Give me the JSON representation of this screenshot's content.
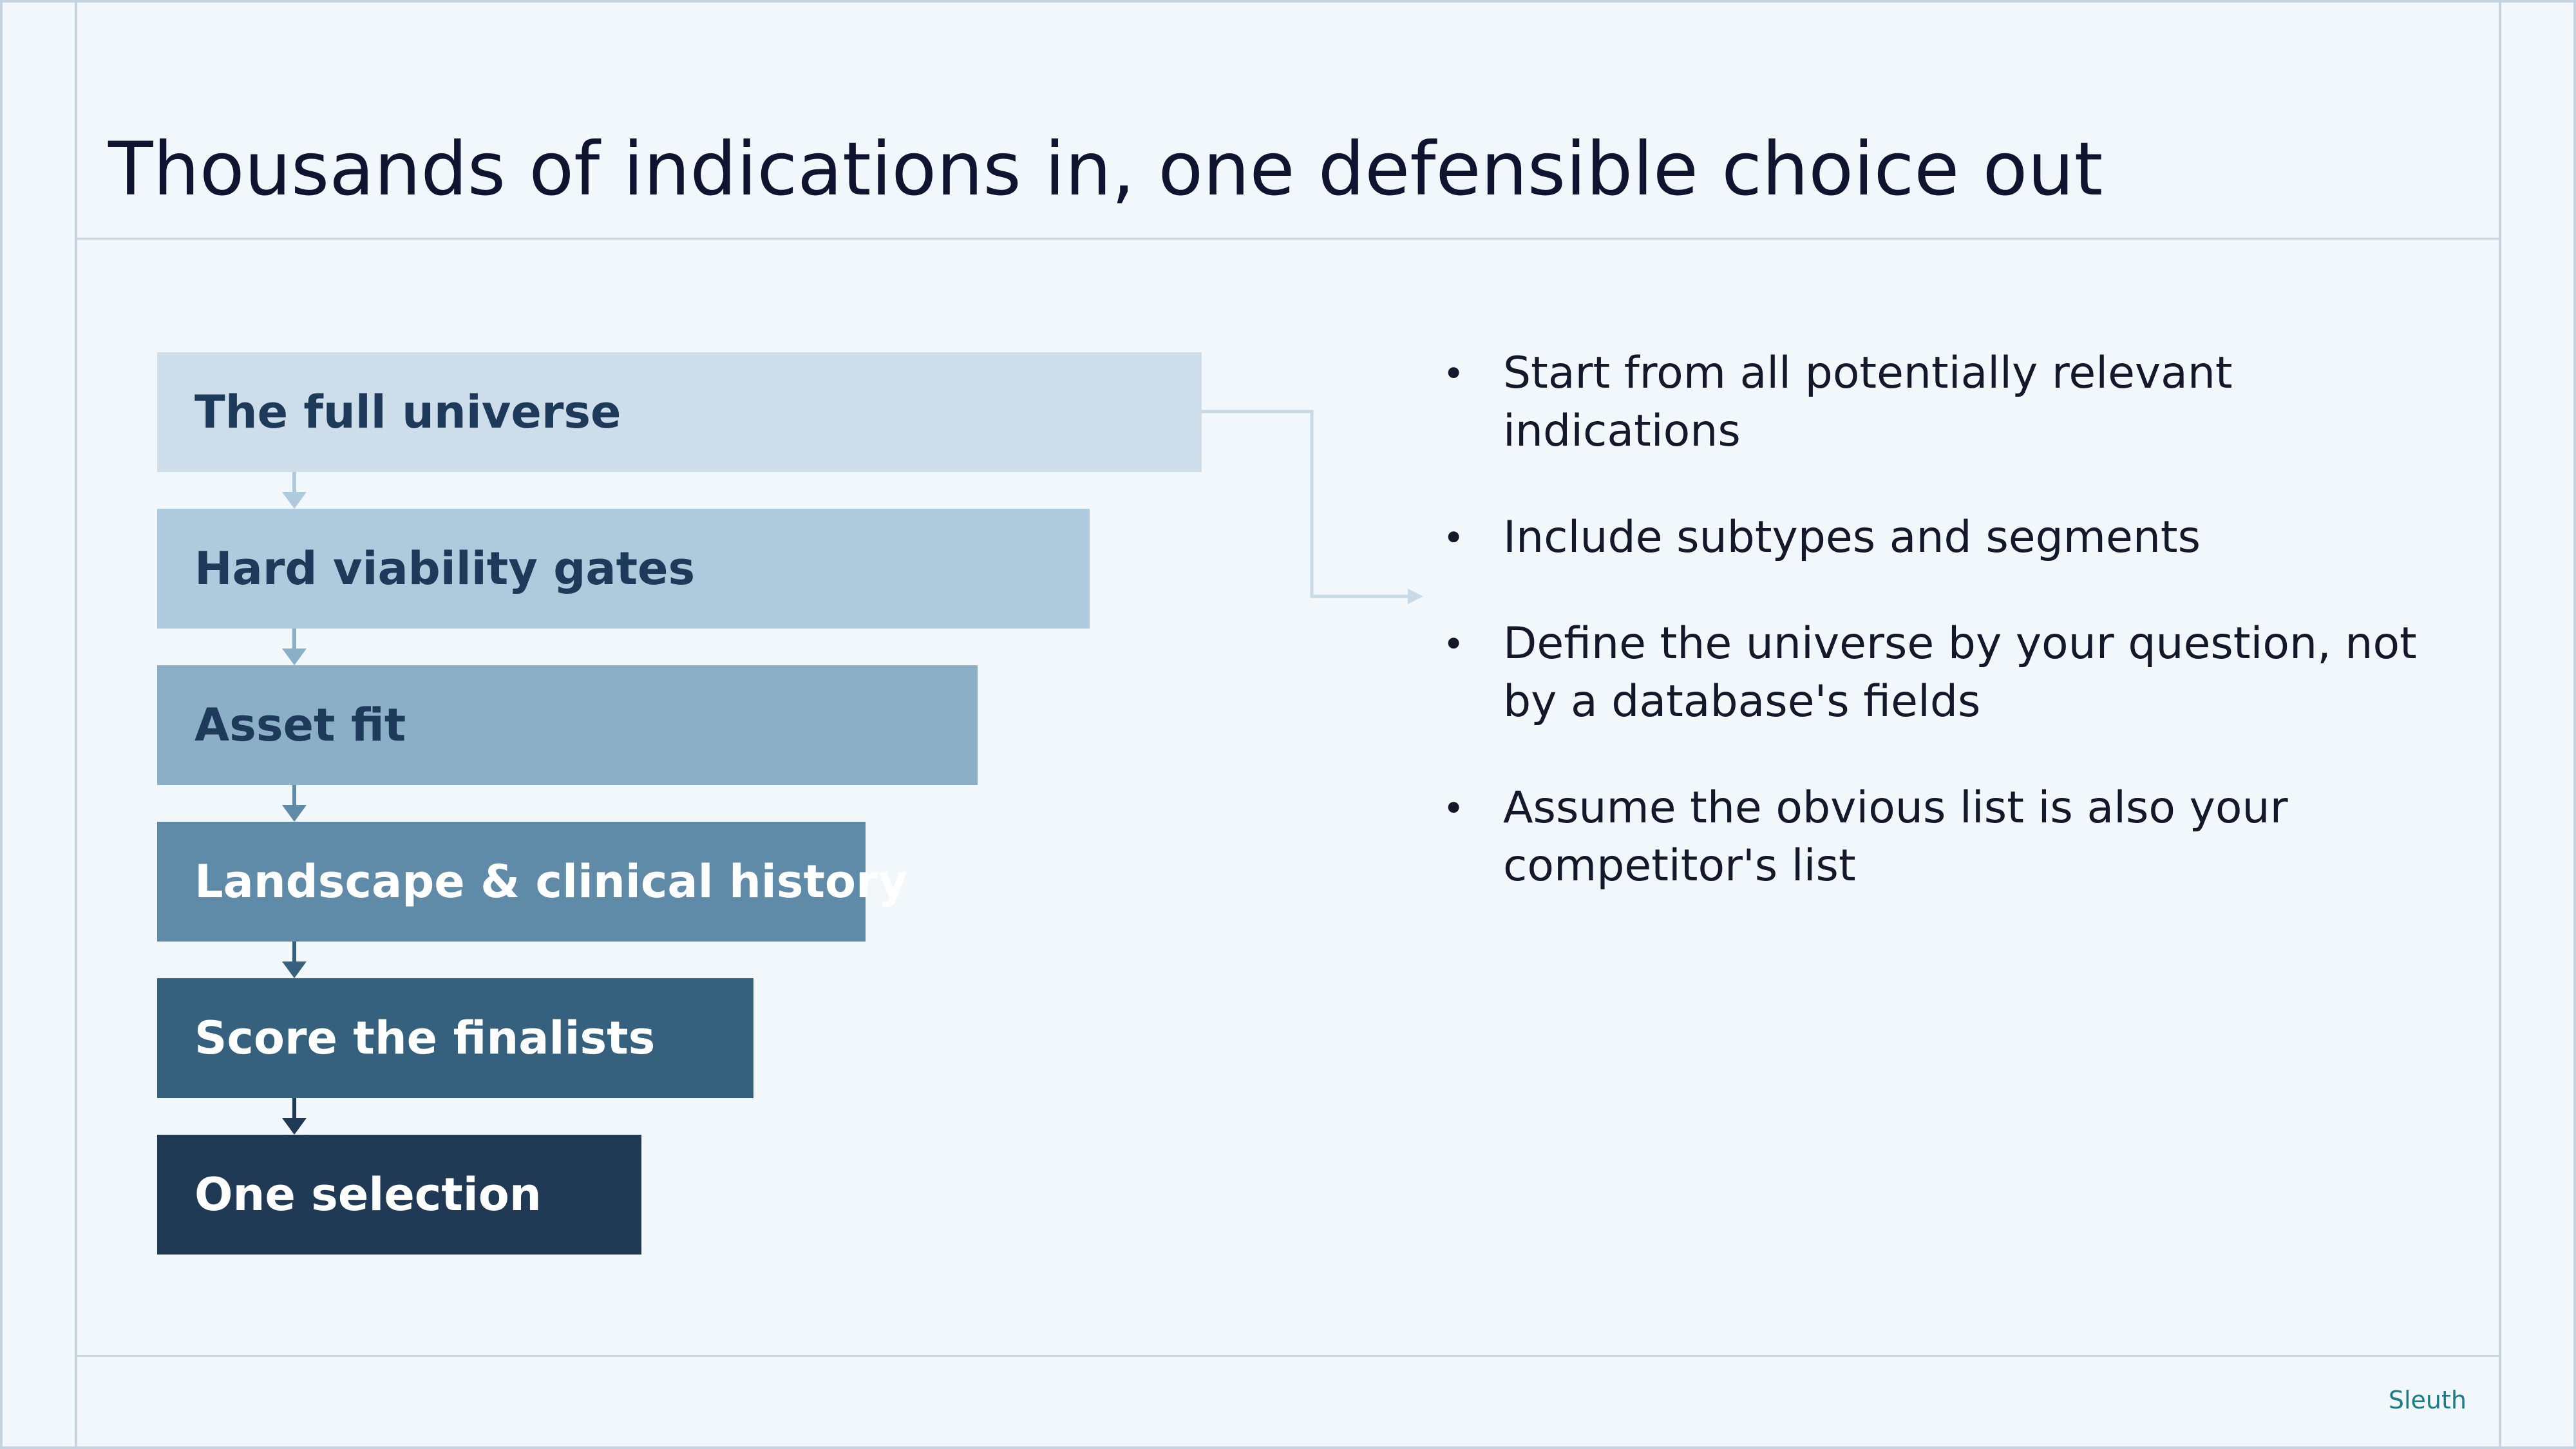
{
  "title": "Thousands of indications in, one defensible choice out",
  "funnel": {
    "stages": [
      {
        "label": "The full universe",
        "bg": "#cddde9",
        "fg": "#1e3a5a"
      },
      {
        "label": "Hard viability gates",
        "bg": "#aecadd",
        "fg": "#1e3a5a"
      },
      {
        "label": "Asset fit",
        "bg": "#8aafc6",
        "fg": "#1e3a5a"
      },
      {
        "label": "Landscape & clinical history",
        "bg": "#5f8aa8",
        "fg": "#ffffff"
      },
      {
        "label": "Score the finalists",
        "bg": "#35607e",
        "fg": "#ffffff"
      },
      {
        "label": "One selection",
        "bg": "#203a56",
        "fg": "#ffffff"
      }
    ],
    "connector_color": "#c8dae6"
  },
  "bullets": [
    "Start from all potentially relevant indications",
    "Include subtypes and segments",
    "Define the universe by your question, not by a database's fields",
    "Assume the obvious list is also your competitor's list"
  ],
  "brand": "Sleuth"
}
